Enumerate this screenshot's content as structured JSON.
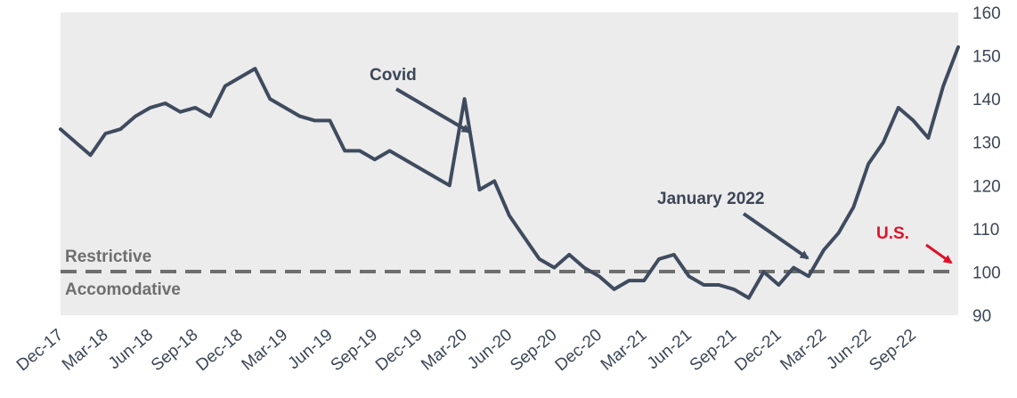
{
  "chart_data": {
    "type": "line",
    "title": "",
    "xlabel": "",
    "ylabel": "",
    "ylim": [
      90,
      160
    ],
    "y_ticks": [
      "90",
      "100",
      "110",
      "120",
      "130",
      "140",
      "150",
      "160"
    ],
    "x_tick_labels": [
      "Dec-17",
      "Mar-18",
      "Jun-18",
      "Sep-18",
      "Dec-18",
      "Mar-19",
      "Jun-19",
      "Sep-19",
      "Dec-19",
      "Mar-20",
      "Jun-20",
      "Sep-20",
      "Dec-20",
      "Mar-21",
      "Jun-21",
      "Sep-21",
      "Dec-21",
      "Mar-22",
      "Jun-22",
      "Sep-22"
    ],
    "grid": false,
    "reference_line": {
      "y": 100,
      "style": "dashed",
      "above_label": "Restrictive",
      "below_label": "Accomodative"
    },
    "annotations": [
      {
        "text": "Covid",
        "points_to": "Mar-20"
      },
      {
        "text": "January 2022",
        "points_to": "Jan-22"
      },
      {
        "text": "U.S.",
        "points_to": "Dec-22"
      }
    ],
    "series": [
      {
        "x": [
          "Dec-17",
          "Jan-18",
          "Feb-18",
          "Mar-18",
          "Apr-18",
          "May-18",
          "Jun-18",
          "Jul-18",
          "Aug-18",
          "Sep-18",
          "Oct-18",
          "Nov-18",
          "Dec-18",
          "Jan-19",
          "Feb-19",
          "Mar-19",
          "Apr-19",
          "May-19",
          "Jun-19",
          "Jul-19",
          "Aug-19",
          "Sep-19",
          "Oct-19",
          "Nov-19",
          "Dec-19",
          "Jan-20",
          "Feb-20",
          "Mar-20",
          "Apr-20",
          "May-20",
          "Jun-20",
          "Jul-20",
          "Aug-20",
          "Sep-20",
          "Oct-20",
          "Nov-20",
          "Dec-20",
          "Jan-21",
          "Feb-21",
          "Mar-21",
          "Apr-21",
          "May-21",
          "Jun-21",
          "Jul-21",
          "Aug-21",
          "Sep-21",
          "Oct-21",
          "Nov-21",
          "Dec-21",
          "Jan-22",
          "Feb-22",
          "Mar-22",
          "Apr-22",
          "May-22",
          "Jun-22",
          "Jul-22",
          "Aug-22",
          "Sep-22",
          "Oct-22",
          "Nov-22",
          "Dec-22"
        ],
        "values": [
          133,
          130,
          127,
          132,
          133,
          136,
          138,
          139,
          137,
          138,
          136,
          143,
          145,
          147,
          140,
          138,
          136,
          135,
          135,
          128,
          128,
          126,
          128,
          126,
          124,
          122,
          120,
          140,
          119,
          121,
          113,
          108,
          103,
          101,
          104,
          101,
          99,
          96,
          98,
          98,
          103,
          104,
          99,
          97,
          97,
          96,
          94,
          100,
          97,
          101,
          99,
          105,
          109,
          115,
          125,
          130,
          138,
          135,
          131,
          143,
          152
        ]
      }
    ],
    "colors": {
      "line": "#3f4b5e",
      "plot_background": "#ececec",
      "reference_line": "#6e6e6e",
      "us_label": "#e0102a"
    }
  }
}
